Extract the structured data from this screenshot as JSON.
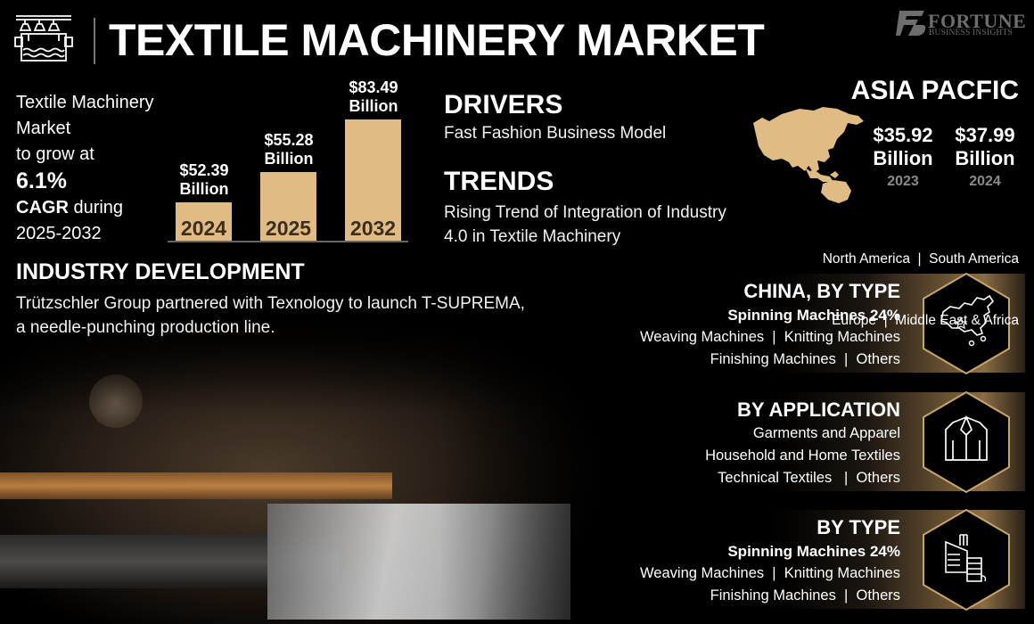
{
  "header": {
    "title": "TEXTILE MACHINERY MARKET",
    "logo_brand": "FORTUNE",
    "logo_sub": "BUSINESS INSIGHTS",
    "icon": "textile-machine-icon"
  },
  "summary": {
    "line1": "Textile Machinery",
    "line2": "Market",
    "line3": "to grow at",
    "cagr": "6.1%",
    "cagr_label": "CAGR",
    "during": " during",
    "period": "2025-2032"
  },
  "chart_data": {
    "type": "bar",
    "categories": [
      "2024",
      "2025",
      "2032"
    ],
    "values": [
      52.39,
      55.28,
      83.49
    ],
    "labels": [
      "$52.39",
      "$55.28",
      "$83.49"
    ],
    "unit": "Billion"
  },
  "drivers": {
    "heading": "DRIVERS",
    "text": "Fast Fashion Business Model"
  },
  "trends": {
    "heading": "TRENDS",
    "line1": "Rising Trend of Integration of Industry",
    "line2": "4.0 in Textile Machinery"
  },
  "region": {
    "heading": "ASIA PACFIC",
    "values": [
      {
        "amount": "$35.92",
        "unit": "Billion",
        "year": "2023"
      },
      {
        "amount": "$37.99",
        "unit": "Billion",
        "year": "2024"
      }
    ],
    "others_line1": "North America  |  South America",
    "others_line2": "Europe  |  Middle East & Africa",
    "map_color": "#e0bc84"
  },
  "industry": {
    "heading": "INDUSTRY DEVELOPMENT",
    "line1": "Trützschler Group partnered with Texnology to launch T-SUPREMA,",
    "line2": "a needle-punching production line."
  },
  "segments": [
    {
      "heading": "CHINA, BY TYPE",
      "highlight": "Spinning Machines 24%",
      "line1": "Weaving Machines  |  Knitting Machines",
      "line2": "Finishing Machines  |  Others",
      "icon": "china-map-icon"
    },
    {
      "heading": "BY APPLICATION",
      "line0": "Garments and Apparel",
      "line1": "Household and Home Textiles",
      "line2": "Technical Textiles   |  Others",
      "icon": "shirt-icon"
    },
    {
      "heading": "BY TYPE",
      "highlight": "Spinning Machines 24%",
      "line1": "Weaving Machines  |  Knitting Machines",
      "line2": "Finishing Machines  |  Others",
      "icon": "spinning-machine-icon"
    }
  ],
  "colors": {
    "accent": "#e0bc84",
    "hex_border": "#c9a46a",
    "muted": "#8a8a8a"
  }
}
